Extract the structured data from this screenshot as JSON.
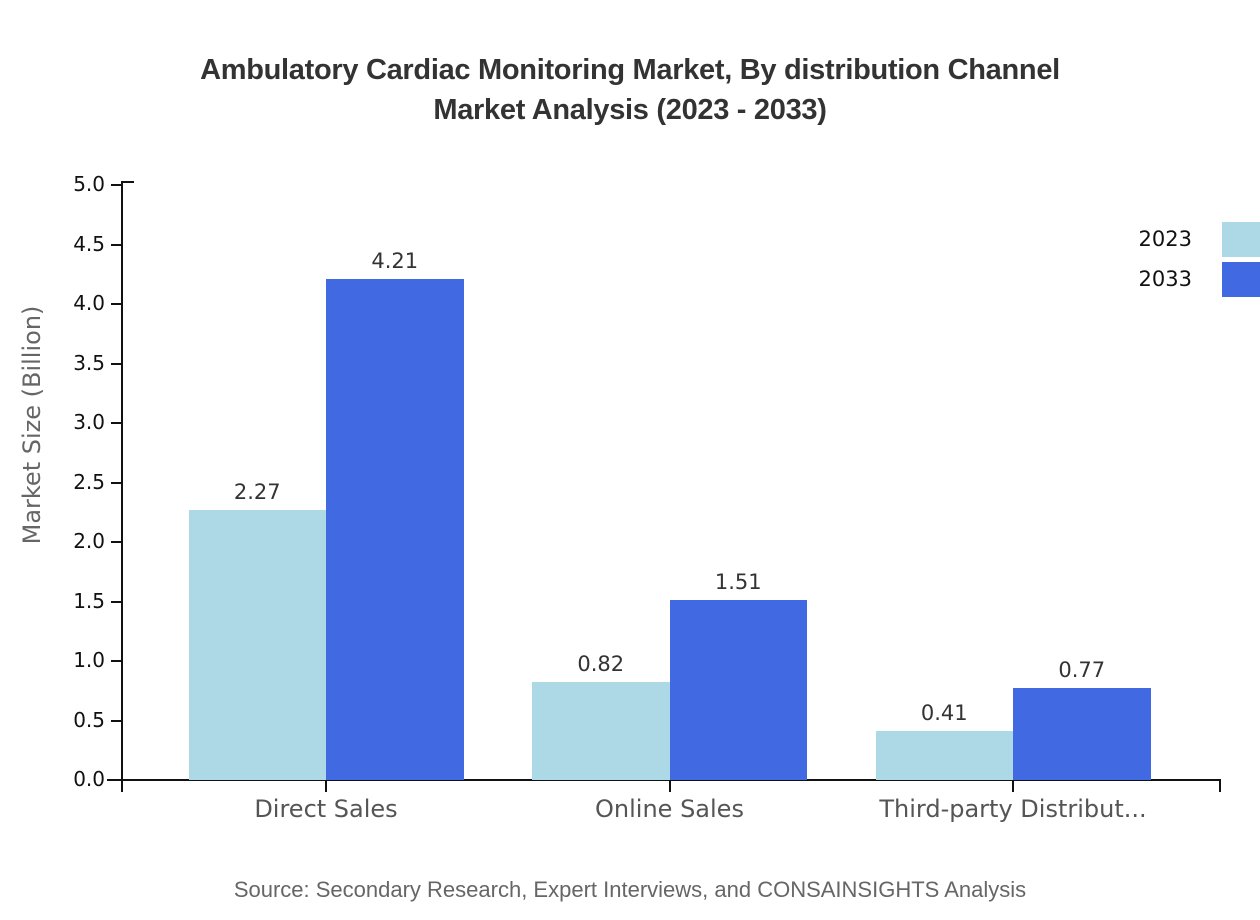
{
  "title": {
    "line1": "Ambulatory Cardiac Monitoring Market, By distribution Channel",
    "line2": "Market Analysis (2023 - 2033)"
  },
  "chart_data": {
    "type": "bar",
    "title": "Ambulatory Cardiac Monitoring Market, By distribution Channel Market Analysis (2023 - 2033)",
    "categories": [
      "Direct Sales",
      "Online Sales",
      "Third-party Distribut..."
    ],
    "series": [
      {
        "name": "2023",
        "color": "#ADD8E6",
        "values": [
          2.27,
          0.82,
          0.41
        ]
      },
      {
        "name": "2033",
        "color": "#4169E1",
        "values": [
          4.21,
          1.51,
          0.77
        ]
      }
    ],
    "value_labels": {
      "2023": [
        "2.27",
        "0.82",
        "0.41"
      ],
      "2033": [
        "4.21",
        "1.51",
        "0.77"
      ]
    },
    "xlabel": "",
    "ylabel": "Market Size (Billion)",
    "ylim": [
      0,
      5
    ],
    "yticks": [
      "0.0",
      "0.5",
      "1.0",
      "1.5",
      "2.0",
      "2.5",
      "3.0",
      "3.5",
      "4.0",
      "4.5",
      "5.0"
    ],
    "grid": false,
    "legend_position": "top-right"
  },
  "colors": {
    "series_2023": "#ADD8E6",
    "series_2033": "#4169E1",
    "axis": "#111111",
    "title_text": "#333333",
    "muted_text": "#666666"
  },
  "source": "Source: Secondary Research, Expert Interviews, and CONSAINSIGHTS Analysis"
}
